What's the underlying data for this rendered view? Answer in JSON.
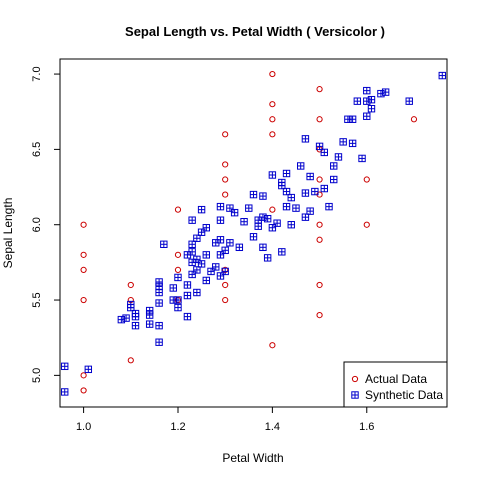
{
  "chart_data": {
    "type": "scatter",
    "title": "Sepal Length  vs.  Petal Width  ( Versicolor )",
    "xlabel": "Petal Width",
    "ylabel": "Sepal Length",
    "xlim": [
      0.95,
      1.77
    ],
    "ylim": [
      4.79,
      7.1
    ],
    "xticks": [
      "1.0",
      "1.2",
      "1.4",
      "1.6"
    ],
    "yticks": [
      "5.0",
      "5.5",
      "6.0",
      "6.5",
      "7.0"
    ],
    "grid": false,
    "legend_position": "bottom-right",
    "series": [
      {
        "name": "Actual Data",
        "marker": "circle",
        "color": "#cc0000",
        "points": [
          [
            1.0,
            4.9
          ],
          [
            1.0,
            5.0
          ],
          [
            1.0,
            5.5
          ],
          [
            1.0,
            5.7
          ],
          [
            1.0,
            5.8
          ],
          [
            1.0,
            6.0
          ],
          [
            1.1,
            5.1
          ],
          [
            1.1,
            5.5
          ],
          [
            1.1,
            5.6
          ],
          [
            1.2,
            5.5
          ],
          [
            1.2,
            5.7
          ],
          [
            1.2,
            5.8
          ],
          [
            1.2,
            6.1
          ],
          [
            1.3,
            5.5
          ],
          [
            1.3,
            5.6
          ],
          [
            1.3,
            5.7
          ],
          [
            1.3,
            6.2
          ],
          [
            1.3,
            6.3
          ],
          [
            1.3,
            6.4
          ],
          [
            1.3,
            6.6
          ],
          [
            1.4,
            5.2
          ],
          [
            1.4,
            6.1
          ],
          [
            1.4,
            6.6
          ],
          [
            1.4,
            6.7
          ],
          [
            1.4,
            6.8
          ],
          [
            1.4,
            7.0
          ],
          [
            1.5,
            5.4
          ],
          [
            1.5,
            5.6
          ],
          [
            1.5,
            5.9
          ],
          [
            1.5,
            6.0
          ],
          [
            1.5,
            6.2
          ],
          [
            1.5,
            6.3
          ],
          [
            1.5,
            6.5
          ],
          [
            1.5,
            6.7
          ],
          [
            1.5,
            6.9
          ],
          [
            1.6,
            6.0
          ],
          [
            1.6,
            6.3
          ],
          [
            1.7,
            6.7
          ]
        ]
      },
      {
        "name": "Synthetic Data",
        "marker": "square-plus",
        "color": "#0000cc",
        "points": [
          [
            0.96,
            4.89
          ],
          [
            0.96,
            5.06
          ],
          [
            1.01,
            5.04
          ],
          [
            1.08,
            5.37
          ],
          [
            1.09,
            5.38
          ],
          [
            1.1,
            5.45
          ],
          [
            1.1,
            5.47
          ],
          [
            1.11,
            5.33
          ],
          [
            1.11,
            5.39
          ],
          [
            1.11,
            5.41
          ],
          [
            1.14,
            5.34
          ],
          [
            1.14,
            5.4
          ],
          [
            1.14,
            5.43
          ],
          [
            1.16,
            5.22
          ],
          [
            1.16,
            5.33
          ],
          [
            1.16,
            5.48
          ],
          [
            1.16,
            5.55
          ],
          [
            1.16,
            5.59
          ],
          [
            1.16,
            5.62
          ],
          [
            1.17,
            5.87
          ],
          [
            1.19,
            5.5
          ],
          [
            1.19,
            5.58
          ],
          [
            1.2,
            5.45
          ],
          [
            1.2,
            5.5
          ],
          [
            1.2,
            5.65
          ],
          [
            1.22,
            5.39
          ],
          [
            1.22,
            5.53
          ],
          [
            1.22,
            5.6
          ],
          [
            1.22,
            5.8
          ],
          [
            1.23,
            5.67
          ],
          [
            1.23,
            5.75
          ],
          [
            1.23,
            5.82
          ],
          [
            1.23,
            5.87
          ],
          [
            1.23,
            6.03
          ],
          [
            1.24,
            5.55
          ],
          [
            1.24,
            5.7
          ],
          [
            1.24,
            5.77
          ],
          [
            1.24,
            5.91
          ],
          [
            1.25,
            5.74
          ],
          [
            1.25,
            5.95
          ],
          [
            1.25,
            6.1
          ],
          [
            1.26,
            5.63
          ],
          [
            1.26,
            5.8
          ],
          [
            1.26,
            5.98
          ],
          [
            1.27,
            5.69
          ],
          [
            1.28,
            5.72
          ],
          [
            1.28,
            5.88
          ],
          [
            1.29,
            5.66
          ],
          [
            1.29,
            5.8
          ],
          [
            1.29,
            5.9
          ],
          [
            1.29,
            6.03
          ],
          [
            1.29,
            6.12
          ],
          [
            1.3,
            5.69
          ],
          [
            1.3,
            5.83
          ],
          [
            1.31,
            5.88
          ],
          [
            1.31,
            6.11
          ],
          [
            1.32,
            6.08
          ],
          [
            1.33,
            5.85
          ],
          [
            1.34,
            6.02
          ],
          [
            1.35,
            6.11
          ],
          [
            1.36,
            5.92
          ],
          [
            1.36,
            6.2
          ],
          [
            1.37,
            5.99
          ],
          [
            1.37,
            6.03
          ],
          [
            1.38,
            5.85
          ],
          [
            1.38,
            6.05
          ],
          [
            1.38,
            6.19
          ],
          [
            1.39,
            5.78
          ],
          [
            1.39,
            6.04
          ],
          [
            1.4,
            5.98
          ],
          [
            1.4,
            6.33
          ],
          [
            1.41,
            6.01
          ],
          [
            1.42,
            5.82
          ],
          [
            1.42,
            6.26
          ],
          [
            1.42,
            6.28
          ],
          [
            1.43,
            6.12
          ],
          [
            1.43,
            6.22
          ],
          [
            1.43,
            6.34
          ],
          [
            1.44,
            6.0
          ],
          [
            1.44,
            6.18
          ],
          [
            1.45,
            6.11
          ],
          [
            1.46,
            6.39
          ],
          [
            1.47,
            6.05
          ],
          [
            1.47,
            6.21
          ],
          [
            1.47,
            6.57
          ],
          [
            1.48,
            6.32
          ],
          [
            1.48,
            6.09
          ],
          [
            1.49,
            6.22
          ],
          [
            1.5,
            6.52
          ],
          [
            1.51,
            6.24
          ],
          [
            1.51,
            6.48
          ],
          [
            1.52,
            6.12
          ],
          [
            1.53,
            6.3
          ],
          [
            1.53,
            6.39
          ],
          [
            1.54,
            6.45
          ],
          [
            1.55,
            6.55
          ],
          [
            1.56,
            6.7
          ],
          [
            1.57,
            6.54
          ],
          [
            1.57,
            6.7
          ],
          [
            1.58,
            6.82
          ],
          [
            1.59,
            6.44
          ],
          [
            1.6,
            6.72
          ],
          [
            1.6,
            6.82
          ],
          [
            1.6,
            6.89
          ],
          [
            1.61,
            6.77
          ],
          [
            1.61,
            6.83
          ],
          [
            1.63,
            6.87
          ],
          [
            1.64,
            6.88
          ],
          [
            1.69,
            6.82
          ],
          [
            1.76,
            6.99
          ]
        ]
      }
    ]
  }
}
